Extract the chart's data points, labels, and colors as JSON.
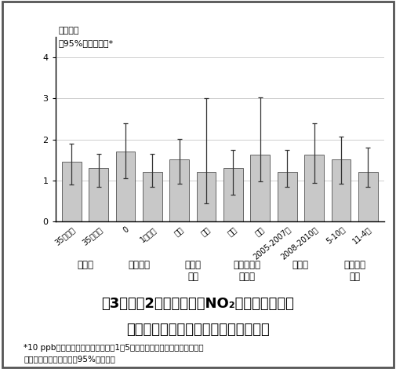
{
  "bar_values": [
    1.45,
    1.3,
    1.7,
    1.2,
    1.52,
    1.2,
    1.3,
    1.62,
    1.2,
    1.62,
    1.52,
    1.2
  ],
  "error_low": [
    0.55,
    0.45,
    0.65,
    0.35,
    0.6,
    0.75,
    0.65,
    0.65,
    0.35,
    0.68,
    0.6,
    0.35
  ],
  "error_high": [
    0.45,
    0.35,
    0.7,
    0.45,
    0.5,
    1.8,
    0.45,
    1.4,
    0.55,
    0.78,
    0.55,
    0.6
  ],
  "bar_color": "#c8c8c8",
  "bar_edgecolor": "#666666",
  "tick_labels": [
    "35歳未満",
    "35歳以上",
    "0",
    "1回以上",
    "なし",
    "あり",
    "なし",
    "あり",
    "2005-2007年",
    "2008-2010年",
    "5-10月",
    "11-4月"
  ],
  "group_labels": [
    "母年齢",
    "出産回数",
    "妊娠中\n喫煙",
    "妊娠高血圧\n症候群",
    "出産年",
    "妊娠した\n季節"
  ],
  "group_centers": [
    0.5,
    2.5,
    4.5,
    6.5,
    8.5,
    10.5
  ],
  "ylabel_line1": "オッズ比",
  "ylabel_line2": "（95%信頼区間）*",
  "ylim": [
    0,
    4.5
  ],
  "yticks": [
    0,
    1,
    2,
    3,
    4
  ],
  "title_line1": "図3．出産2日前の日平均NO₂濃度と常位胎盤",
  "title_line2": "早期剥離との関連についての層別検討",
  "footnote_line1": "*10 ppb上昇に対する気温及び出産1～5日前までの日平均濃度を調整した",
  "footnote_line2": "オッズ比．エラーバーは95%信頼区間",
  "title_fontsize": 13,
  "footnote_fontsize": 7.5,
  "tick_fontsize": 7,
  "group_label_fontsize": 8.5,
  "ylabel_fontsize": 8
}
